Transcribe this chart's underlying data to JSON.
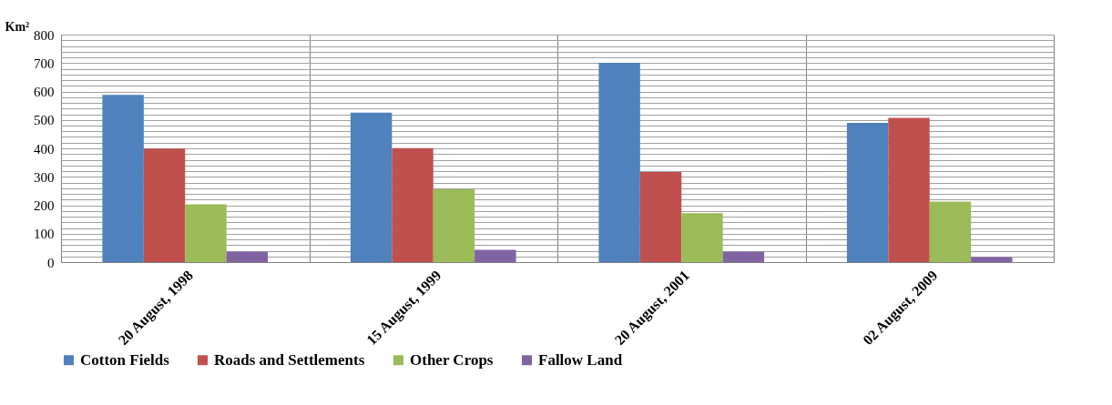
{
  "chart_data": {
    "type": "bar",
    "ylabel": "Km²",
    "categories": [
      "20 August, 1998",
      "15 August, 1999",
      "20 August, 2001",
      "02 August, 2009"
    ],
    "series": [
      {
        "name": "Cotton Fields",
        "color": "#4f81bd",
        "values": [
          588,
          526,
          701,
          490
        ]
      },
      {
        "name": "Roads and Settlements",
        "color": "#c0504d",
        "values": [
          399,
          401,
          317,
          507
        ]
      },
      {
        "name": "Other Crops",
        "color": "#9bbb59",
        "values": [
          203,
          256,
          172,
          213
        ]
      },
      {
        "name": "Fallow Land",
        "color": "#8064a2",
        "values": [
          37,
          43,
          37,
          18
        ]
      }
    ],
    "ylim": [
      0,
      800
    ],
    "yticks": [
      0,
      {
        "value": 20,
        "label": null
      },
      {
        "value": 40,
        "label": null
      },
      {
        "value": 60,
        "label": null
      },
      {
        "value": 80,
        "label": null
      },
      100,
      {
        "value": 120,
        "label": null
      },
      {
        "value": 140,
        "label": null
      },
      {
        "value": 160,
        "label": null
      },
      {
        "value": 180,
        "label": null
      },
      200,
      {
        "value": 220,
        "label": null
      },
      {
        "value": 240,
        "label": null
      },
      {
        "value": 260,
        "label": null
      },
      {
        "value": 280,
        "label": null
      },
      300,
      {
        "value": 320,
        "label": null
      },
      {
        "value": 340,
        "label": null
      },
      {
        "value": 360,
        "label": null
      },
      {
        "value": 380,
        "label": null
      },
      400,
      {
        "value": 420,
        "label": null
      },
      {
        "value": 440,
        "label": null
      },
      {
        "value": 460,
        "label": null
      },
      {
        "value": 480,
        "label": null
      },
      500,
      {
        "value": 520,
        "label": null
      },
      {
        "value": 540,
        "label": null
      },
      {
        "value": 560,
        "label": null
      },
      {
        "value": 580,
        "label": null
      },
      600,
      {
        "value": 620,
        "label": null
      },
      {
        "value": 640,
        "label": null
      },
      {
        "value": 660,
        "label": null
      },
      {
        "value": 680,
        "label": null
      },
      700,
      {
        "value": 720,
        "label": null
      },
      {
        "value": 740,
        "label": null
      },
      {
        "value": 760,
        "label": null
      },
      {
        "value": 780,
        "label": null
      },
      800
    ],
    "grid": true,
    "legend": "bottom"
  }
}
